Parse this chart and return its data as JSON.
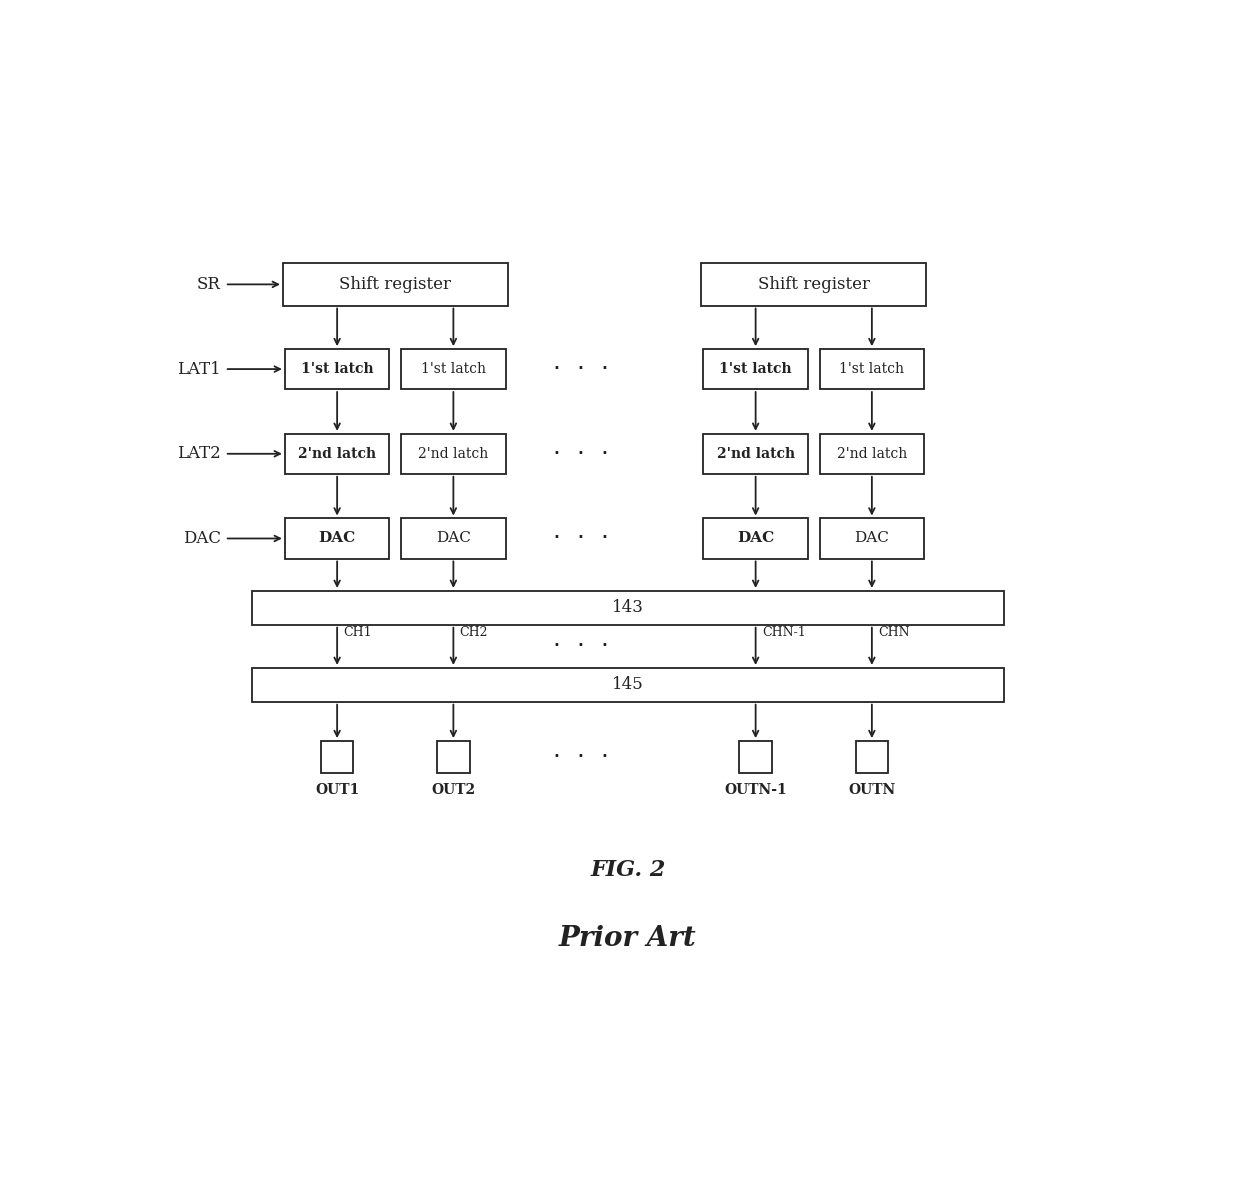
{
  "bg_color": "#ffffff",
  "line_color": "#222222",
  "box_fill": "#ffffff",
  "box_edge": "#222222",
  "fig_width": 12.4,
  "fig_height": 12.02,
  "fig_label": "FIG. 2",
  "subtitle": "Prior Art",
  "sr_label": "SR",
  "lat1_label": "LAT1",
  "lat2_label": "LAT2",
  "dac_row_label": "DAC",
  "bus143_label": "143",
  "bus145_label": "145",
  "dots": "·  ·  ·"
}
